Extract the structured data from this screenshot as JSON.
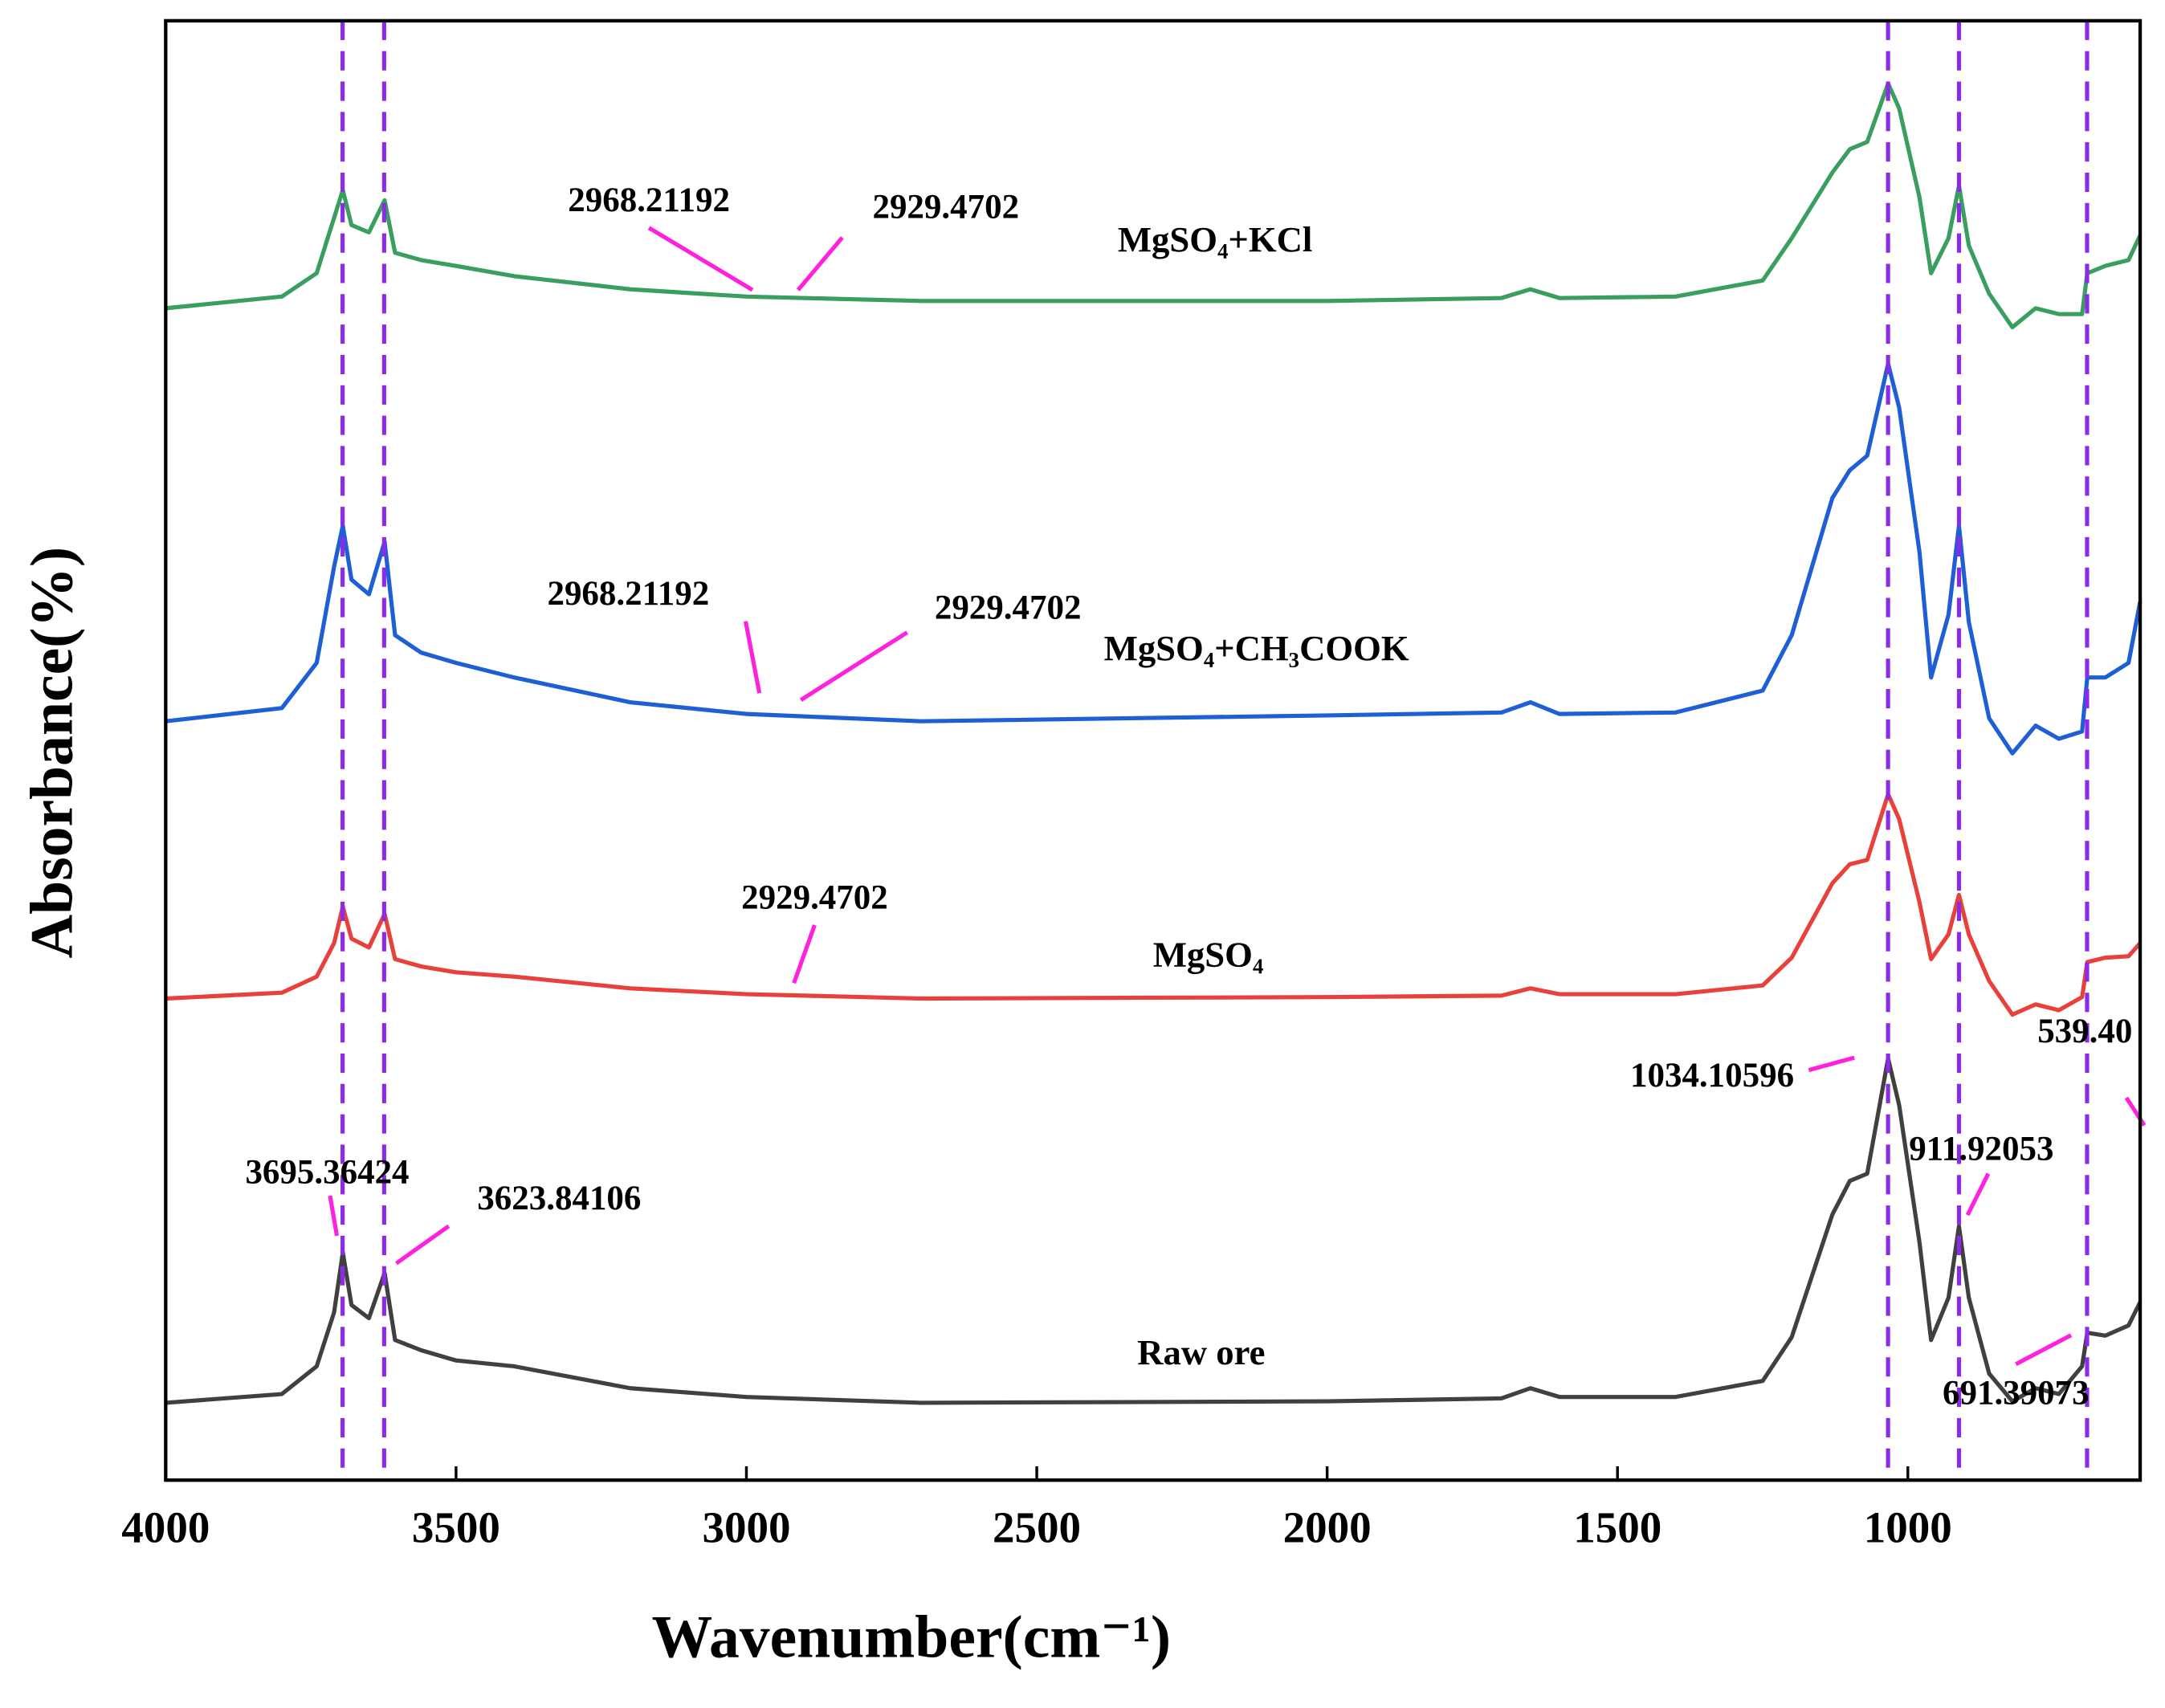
{
  "chart_data": {
    "type": "line",
    "xlabel": "Wavenumber(cm⁻¹)",
    "ylabel": "Absorbance(%)",
    "xlim": [
      4000,
      600
    ],
    "xticks": [
      4000,
      3500,
      3000,
      2500,
      2000,
      1500,
      1000
    ],
    "ylim": [
      0,
      100
    ],
    "reference_lines": [
      3695.36424,
      3623.84106,
      1034.10596,
      911.92053,
      691.39073
    ],
    "reference_color": "#8b2be8",
    "annotation_color": "#ff22dd",
    "x": [
      4000,
      3800,
      3740,
      3710,
      3695,
      3680,
      3650,
      3623,
      3605,
      3560,
      3500,
      3400,
      3200,
      3000,
      2700,
      2000,
      1700,
      1650,
      1600,
      1400,
      1250,
      1200,
      1130,
      1100,
      1070,
      1034,
      1015,
      980,
      960,
      930,
      912,
      895,
      860,
      820,
      780,
      740,
      700,
      691,
      660,
      620,
      600
    ],
    "series": [
      {
        "name": "Raw ore",
        "color": "#404040",
        "values": [
          5.3,
          5.9,
          7.8,
          11.5,
          15.6,
          12.0,
          11.1,
          14.2,
          9.6,
          8.9,
          8.2,
          7.8,
          6.3,
          5.7,
          5.3,
          5.4,
          5.6,
          6.3,
          5.7,
          5.7,
          6.8,
          9.8,
          18.2,
          20.5,
          21.0,
          28.9,
          25.7,
          16.3,
          9.6,
          12.5,
          17.4,
          12.5,
          7.3,
          5.4,
          6.3,
          5.9,
          7.8,
          10.1,
          9.9,
          10.6,
          12.2
        ]
      },
      {
        "name": "MgSO₄",
        "color": "#e8413c",
        "values": [
          33.0,
          33.4,
          34.5,
          36.8,
          39.3,
          37.1,
          36.5,
          38.8,
          35.7,
          35.2,
          34.8,
          34.5,
          33.7,
          33.3,
          33.0,
          33.1,
          33.2,
          33.7,
          33.3,
          33.3,
          33.9,
          35.8,
          40.9,
          42.2,
          42.5,
          47.0,
          45.3,
          39.6,
          35.7,
          37.4,
          40.1,
          37.4,
          34.2,
          31.9,
          32.6,
          32.2,
          33.1,
          35.5,
          35.8,
          35.9,
          36.8
        ]
      },
      {
        "name": "MgSO₄+CH₃COOK",
        "color": "#1f5fd6",
        "values": [
          52.0,
          52.9,
          56.0,
          62.6,
          65.4,
          61.7,
          60.7,
          64.3,
          57.9,
          56.7,
          56.0,
          55.0,
          53.3,
          52.5,
          52.0,
          52.4,
          52.6,
          53.3,
          52.5,
          52.6,
          54.1,
          57.9,
          67.3,
          69.2,
          70.2,
          76.5,
          73.5,
          63.6,
          55.0,
          59.3,
          65.4,
          58.8,
          52.2,
          49.8,
          51.7,
          50.8,
          51.3,
          55.0,
          55.0,
          56.0,
          60.2
        ]
      },
      {
        "name": "MgSO₄+KCl",
        "color": "#3a9e5f",
        "values": [
          80.3,
          81.1,
          82.7,
          86.5,
          88.4,
          86.0,
          85.5,
          87.7,
          84.1,
          83.6,
          83.2,
          82.5,
          81.6,
          81.1,
          80.8,
          80.8,
          81.0,
          81.6,
          81.0,
          81.1,
          82.2,
          85.1,
          89.6,
          91.2,
          91.7,
          95.7,
          94.0,
          87.9,
          82.7,
          85.1,
          88.7,
          84.6,
          81.3,
          79.0,
          80.3,
          79.9,
          79.9,
          82.7,
          83.2,
          83.6,
          85.3
        ]
      }
    ],
    "annotations": [
      "2968.21192",
      "2929.4702",
      "2968.21192",
      "2929.4702",
      "2929.4702",
      "1034.10596",
      "539.40",
      "3695.36424",
      "3623.84106",
      "911.92053",
      "691.39073"
    ]
  }
}
